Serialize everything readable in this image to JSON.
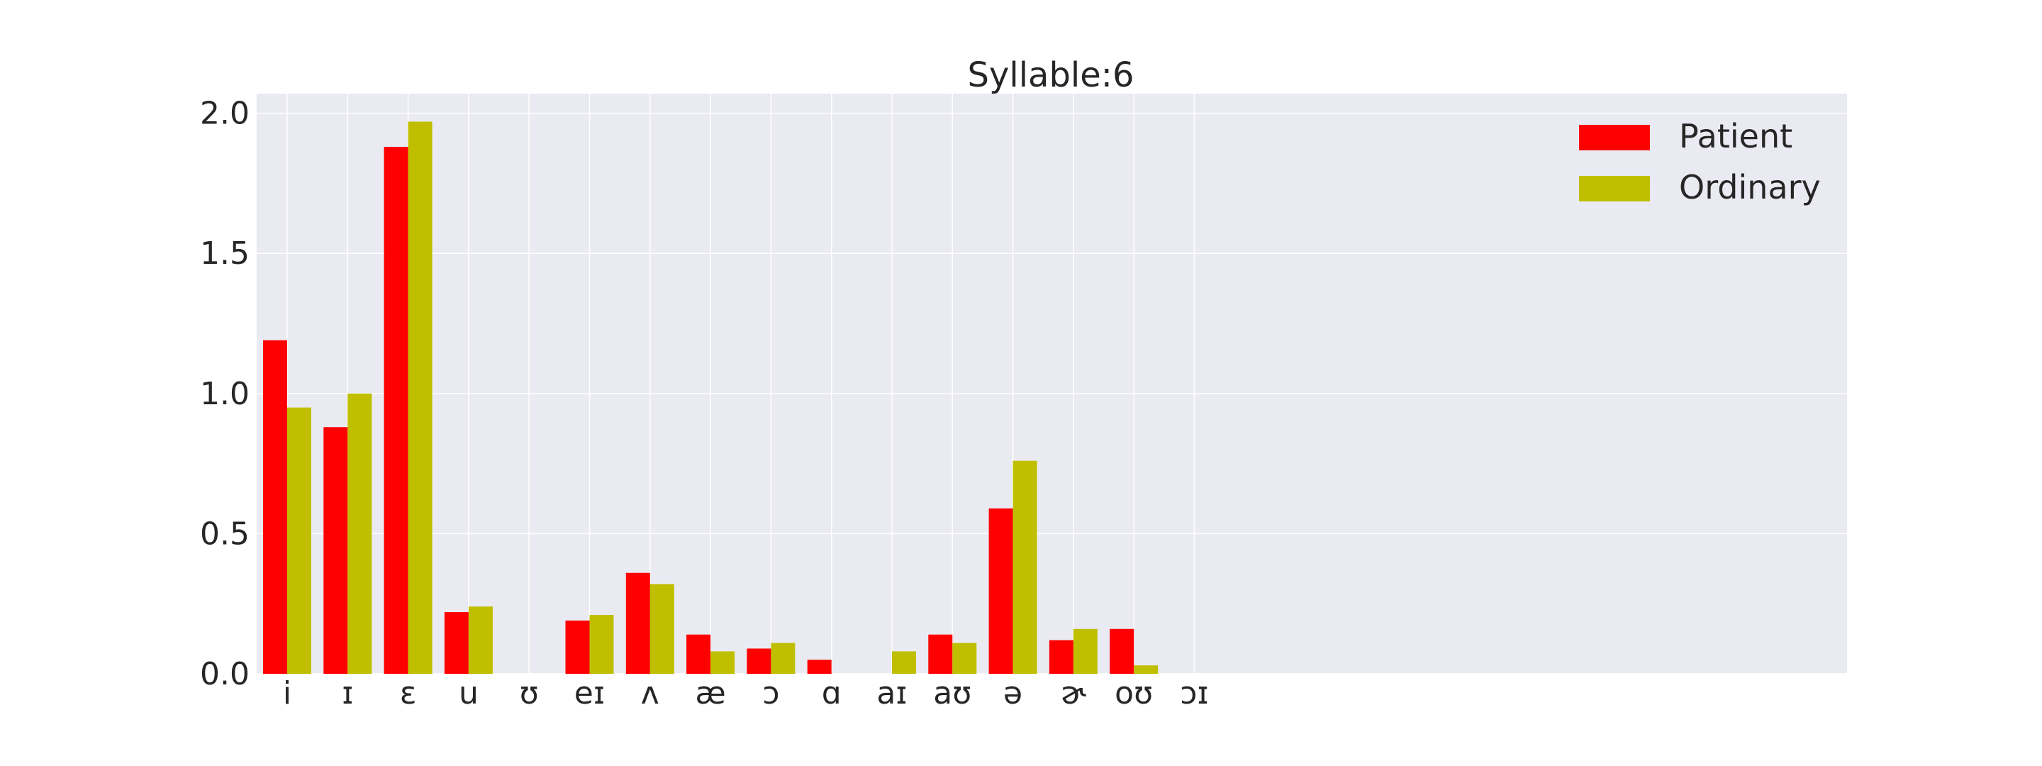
{
  "chart_data": {
    "type": "bar",
    "title": "Syllable:6",
    "xlabel": "",
    "ylabel": "",
    "ylim": [
      0,
      2.07
    ],
    "yticks": [
      "0.0",
      "0.5",
      "1.0",
      "1.5",
      "2.0"
    ],
    "ytick_values": [
      0,
      0.5,
      1.0,
      1.5,
      2.0
    ],
    "grid": true,
    "legend_position": "top-right",
    "categories": [
      "i",
      "ɪ",
      "ɛ",
      "u",
      "ʊ",
      "eɪ",
      "ʌ",
      "æ",
      "ɔ",
      "ɑ",
      "aɪ",
      "aʊ",
      "ə",
      "ɚ",
      "oʊ",
      "ɔɪ"
    ],
    "series": [
      {
        "name": "Patient",
        "color": "#ff0000",
        "values": [
          1.19,
          0.88,
          1.88,
          0.22,
          0.0,
          0.19,
          0.36,
          0.14,
          0.09,
          0.05,
          0.0,
          0.14,
          0.59,
          0.12,
          0.16,
          0.0
        ]
      },
      {
        "name": "Ordinary",
        "color": "#bfbf00",
        "values": [
          0.95,
          1.0,
          1.97,
          0.24,
          0.0,
          0.21,
          0.32,
          0.08,
          0.11,
          0.0,
          0.08,
          0.11,
          0.76,
          0.16,
          0.03,
          0.0
        ]
      }
    ],
    "colors": {
      "plot_background": "#eaeaf2",
      "grid": "#ffffff",
      "text": "#262626"
    }
  }
}
